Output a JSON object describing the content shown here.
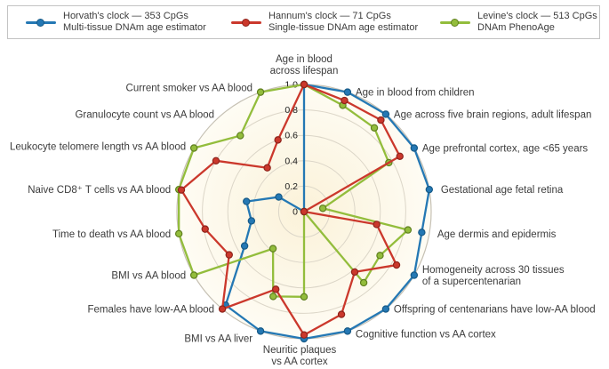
{
  "legend": {
    "items": [
      {
        "title": "Horvath's clock — 353 CpGs",
        "subtitle": "Multi-tissue DNAm age estimator",
        "color": "#2478b4",
        "edge_color": "#175a87"
      },
      {
        "title": "Hannum's clock — 71 CpGs",
        "subtitle": "Single-tissue DNAm age estimator",
        "color": "#cb382c",
        "edge_color": "#8e241c"
      },
      {
        "title": "Levine's clock — 513 CpGs",
        "subtitle": "DNAm PhenoAge",
        "color": "#93bd3c",
        "edge_color": "#5f7f1f"
      }
    ]
  },
  "chart_data": {
    "type": "radar",
    "title": "",
    "grid": "circular",
    "rlim": [
      0,
      1
    ],
    "tick_values": [
      1.0,
      0.8,
      0.6,
      0.4,
      0.2,
      0
    ],
    "tick_labels": [
      "1.0",
      "0.8",
      "0.6",
      "0.4",
      "0.2",
      "0"
    ],
    "plot_fill_center": "#fbf2d9",
    "plot_fill_edge": "#fefcf4",
    "ring_color": "#dcd6c8",
    "outer_ring_color": "#c6c1b4",
    "categories": [
      "Age in blood\nacross lifespan",
      "Age in blood from children",
      "Age across five brain regions, adult lifespan",
      "Age prefrontal cortex, age <65 years",
      "Gestational age fetal retina",
      "Age dermis and epidermis",
      "Homogeneity across 30 tissues\nof a supercentenarian",
      "Offspring of centenarians have low-AA blood",
      "Cognitive function vs AA cortex",
      "Neuritic plaques\nvs AA cortex",
      "BMI vs AA liver",
      "Females have low-AA blood",
      "BMI vs AA blood",
      "Time to death vs AA blood",
      "Naive CD8⁺ T cells vs AA blood",
      "Leukocyte telomere length vs AA blood",
      "Granulocyte count vs AA blood",
      "Current smoker vs AA blood"
    ],
    "series": [
      {
        "name": "Horvath's clock",
        "color": "#2478b4",
        "edge_color": "#175a87",
        "values": [
          1.0,
          1.0,
          1.0,
          1.0,
          1.0,
          0.94,
          1.0,
          1.0,
          1.0,
          1.0,
          1.0,
          0.96,
          0.54,
          0.42,
          0.46,
          0.23,
          0.0,
          0.0
        ]
      },
      {
        "name": "Levine's clock",
        "color": "#93bd3c",
        "edge_color": "#5f7f1f",
        "values": [
          1.0,
          0.89,
          0.86,
          0.77,
          0.15,
          0.83,
          0.69,
          0.73,
          0.0,
          0.67,
          0.71,
          0.38,
          1.0,
          1.0,
          1.0,
          1.0,
          0.78,
          1.0
        ]
      },
      {
        "name": "Hannum's clock",
        "color": "#cb382c",
        "edge_color": "#8e241c",
        "values": [
          1.0,
          0.93,
          0.94,
          0.87,
          0.0,
          0.58,
          0.84,
          0.62,
          0.86,
          0.97,
          0.65,
          1.0,
          0.68,
          0.79,
          0.98,
          0.8,
          0.45,
          0.6
        ]
      }
    ]
  }
}
